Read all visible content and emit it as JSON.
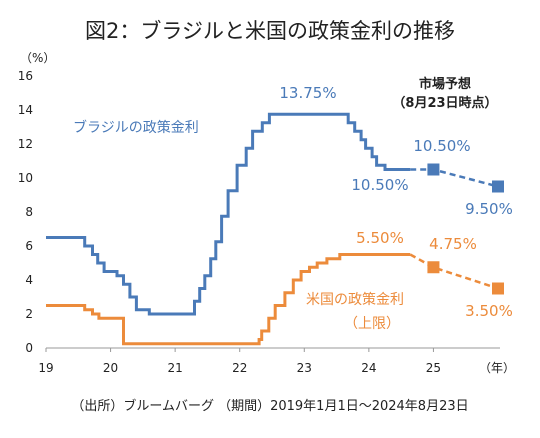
{
  "chart_data": {
    "type": "line",
    "title": "図2：ブラジルと米国の政策金利の推移",
    "y_unit": "（%）",
    "x_unit": "（年）",
    "ylim": [
      0,
      16
    ],
    "y_ticks": [
      "0",
      "2",
      "4",
      "6",
      "8",
      "10",
      "12",
      "14",
      "16"
    ],
    "x_ticks": [
      "19",
      "20",
      "21",
      "22",
      "23",
      "24",
      "25"
    ],
    "grid": false,
    "series": [
      {
        "name": "ブラジルの政策金利",
        "color": "#4a7ab8",
        "points": [
          [
            2019.0,
            6.5
          ],
          [
            2019.55,
            6.5
          ],
          [
            2019.6,
            6.0
          ],
          [
            2019.72,
            5.5
          ],
          [
            2019.8,
            5.0
          ],
          [
            2019.9,
            4.5
          ],
          [
            2020.1,
            4.25
          ],
          [
            2020.2,
            3.75
          ],
          [
            2020.3,
            3.0
          ],
          [
            2020.4,
            2.25
          ],
          [
            2020.6,
            2.0
          ],
          [
            2021.2,
            2.0
          ],
          [
            2021.3,
            2.75
          ],
          [
            2021.38,
            3.5
          ],
          [
            2021.46,
            4.25
          ],
          [
            2021.55,
            5.25
          ],
          [
            2021.63,
            6.25
          ],
          [
            2021.72,
            7.75
          ],
          [
            2021.82,
            9.25
          ],
          [
            2021.96,
            10.75
          ],
          [
            2022.1,
            11.75
          ],
          [
            2022.2,
            12.75
          ],
          [
            2022.35,
            13.25
          ],
          [
            2022.46,
            13.75
          ],
          [
            2023.6,
            13.75
          ],
          [
            2023.68,
            13.25
          ],
          [
            2023.78,
            12.75
          ],
          [
            2023.88,
            12.25
          ],
          [
            2023.95,
            11.75
          ],
          [
            2024.05,
            11.25
          ],
          [
            2024.12,
            10.75
          ],
          [
            2024.25,
            10.5
          ],
          [
            2024.64,
            10.5
          ]
        ]
      },
      {
        "name": "米国の政策金利（上限）",
        "color": "#ec8b3b",
        "points": [
          [
            2019.0,
            2.5
          ],
          [
            2019.55,
            2.5
          ],
          [
            2019.6,
            2.25
          ],
          [
            2019.72,
            2.0
          ],
          [
            2019.82,
            1.75
          ],
          [
            2020.17,
            1.75
          ],
          [
            2020.2,
            0.25
          ],
          [
            2022.19,
            0.25
          ],
          [
            2022.3,
            0.5
          ],
          [
            2022.34,
            1.0
          ],
          [
            2022.45,
            1.75
          ],
          [
            2022.55,
            2.5
          ],
          [
            2022.7,
            3.25
          ],
          [
            2022.83,
            4.0
          ],
          [
            2022.95,
            4.5
          ],
          [
            2023.08,
            4.75
          ],
          [
            2023.2,
            5.0
          ],
          [
            2023.35,
            5.25
          ],
          [
            2023.55,
            5.5
          ],
          [
            2024.64,
            5.5
          ]
        ]
      }
    ],
    "forecast_heading": [
      "市場予想",
      "（8月23日時点）"
    ],
    "forecast": [
      {
        "series": "ブラジルの政策金利",
        "color": "#4a7ab8",
        "points": [
          [
            2024.64,
            10.5
          ],
          [
            2025.0,
            10.5
          ],
          [
            2026.0,
            9.5
          ]
        ]
      },
      {
        "series": "米国の政策金利（上限）",
        "color": "#ec8b3b",
        "points": [
          [
            2024.64,
            5.5
          ],
          [
            2025.0,
            4.75
          ],
          [
            2026.0,
            3.5
          ]
        ]
      }
    ],
    "annotations": {
      "brazil_peak": "13.75%",
      "brazil_current": "10.50%",
      "brazil_forecast_2025": "10.50%",
      "brazil_forecast_end": "9.50%",
      "us_current": "5.50%",
      "us_forecast_2025": "4.75%",
      "us_forecast_end": "3.50%"
    },
    "series_labels": {
      "brazil": "ブラジルの政策金利",
      "us_line1": "米国の政策金利",
      "us_line2": "（上限）"
    },
    "source": "（出所）ブルームバーグ （期間）2019年1月1日～2024年8月23日"
  }
}
